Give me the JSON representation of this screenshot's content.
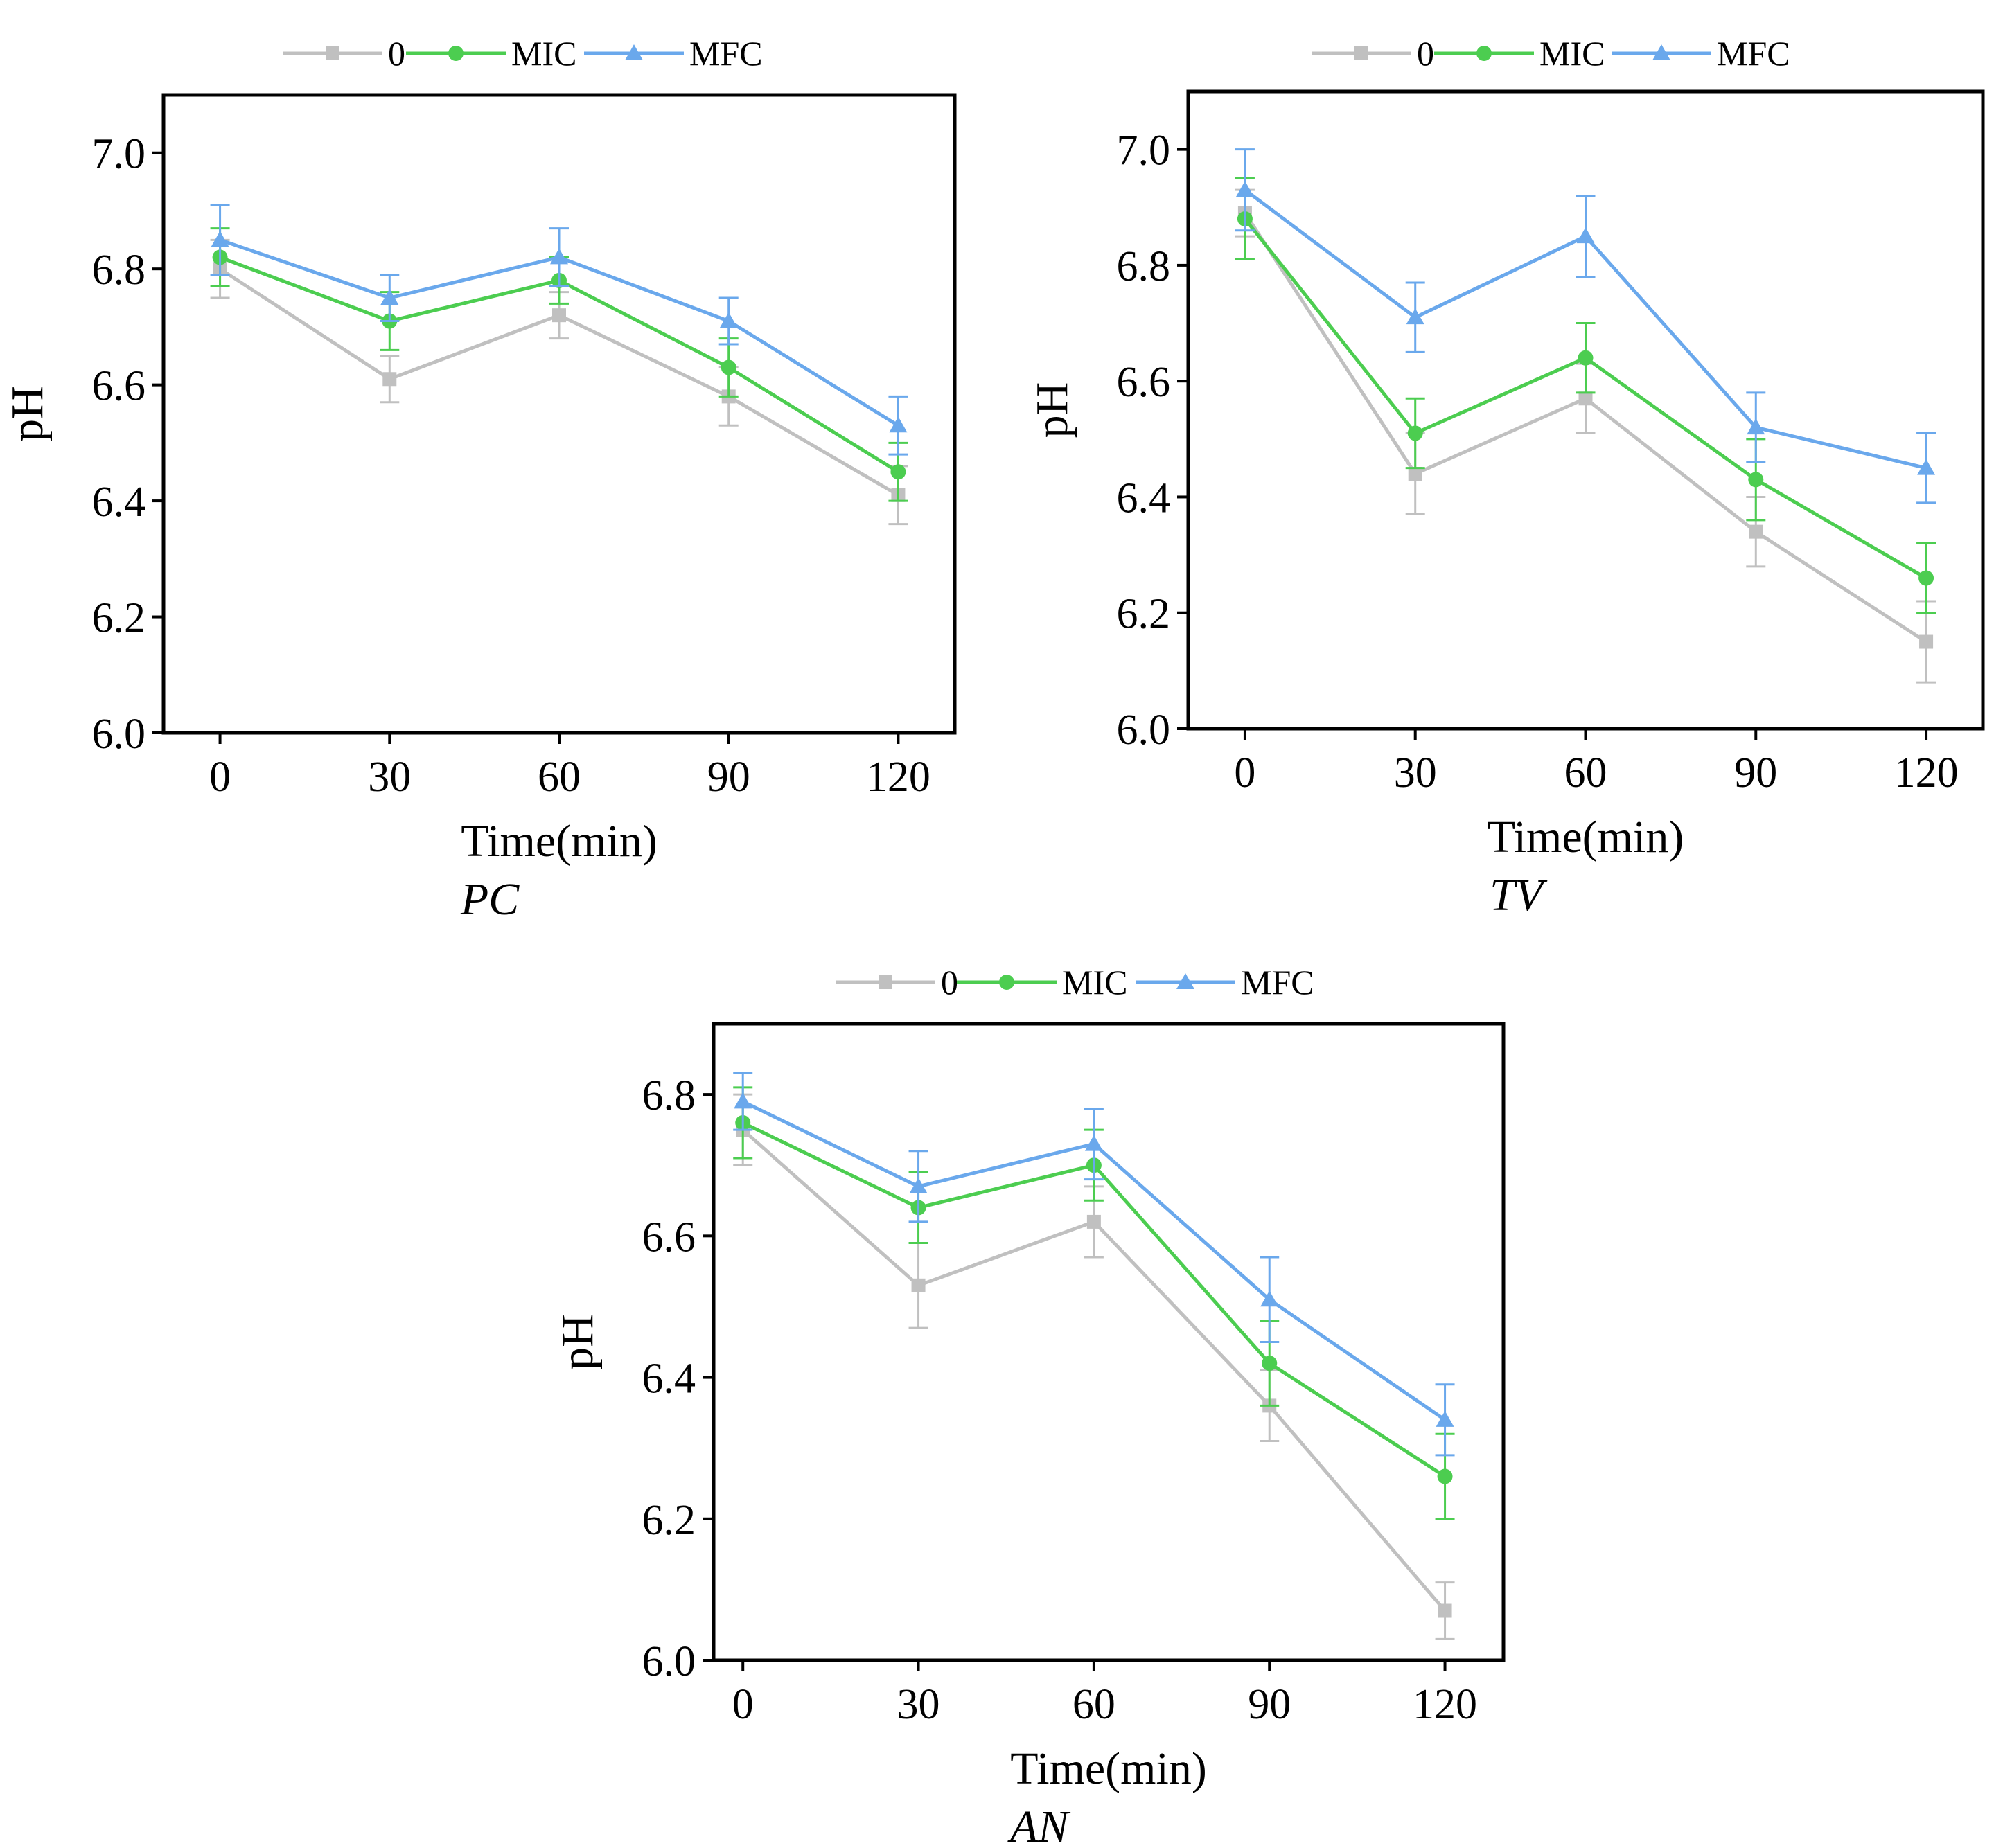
{
  "chart_data": [
    {
      "type": "line",
      "title": "",
      "panel_label": "PC",
      "xlabel": "Time(min)",
      "ylabel": "pH",
      "x": [
        0,
        30,
        60,
        90,
        120
      ],
      "x_ticks": [
        "0",
        "30",
        "60",
        "90",
        "120"
      ],
      "xlim": [
        -10,
        130
      ],
      "ylim": [
        6.0,
        7.1
      ],
      "y_ticks": [
        "6.0",
        "6.2",
        "6.4",
        "6.6",
        "6.8",
        "7.0"
      ],
      "y_tick_values": [
        6.0,
        6.2,
        6.4,
        6.6,
        6.8,
        7.0
      ],
      "grid": false,
      "legend_position": "top",
      "series": [
        {
          "name": "0",
          "marker": "square",
          "color": "#c0c0c0",
          "values": [
            6.8,
            6.61,
            6.72,
            6.58,
            6.41
          ],
          "errors": [
            0.05,
            0.04,
            0.04,
            0.05,
            0.05
          ]
        },
        {
          "name": "MIC",
          "marker": "circle",
          "color": "#4ccd50",
          "values": [
            6.82,
            6.71,
            6.78,
            6.63,
            6.45
          ],
          "errors": [
            0.05,
            0.05,
            0.04,
            0.05,
            0.05
          ]
        },
        {
          "name": "MFC",
          "marker": "triangle",
          "color": "#6aa8ec",
          "values": [
            6.85,
            6.75,
            6.82,
            6.71,
            6.53
          ],
          "errors": [
            0.06,
            0.04,
            0.05,
            0.04,
            0.05
          ]
        }
      ]
    },
    {
      "type": "line",
      "title": "",
      "panel_label": "TV",
      "xlabel": "Time(min)",
      "ylabel": "pH",
      "x": [
        0,
        30,
        60,
        90,
        120
      ],
      "x_ticks": [
        "0",
        "30",
        "60",
        "90",
        "120"
      ],
      "xlim": [
        -10,
        130
      ],
      "ylim": [
        6.0,
        7.1
      ],
      "y_ticks": [
        "6.0",
        "6.2",
        "6.4",
        "6.6",
        "6.8",
        "7.0"
      ],
      "y_tick_values": [
        6.0,
        6.2,
        6.4,
        6.6,
        6.8,
        7.0
      ],
      "grid": false,
      "legend_position": "top",
      "series": [
        {
          "name": "0",
          "marker": "square",
          "color": "#c0c0c0",
          "values": [
            6.89,
            6.44,
            6.57,
            6.34,
            6.15
          ],
          "errors": [
            0.04,
            0.07,
            0.06,
            0.06,
            0.07
          ]
        },
        {
          "name": "MIC",
          "marker": "circle",
          "color": "#4ccd50",
          "values": [
            6.88,
            6.51,
            6.64,
            6.43,
            6.26
          ],
          "errors": [
            0.07,
            0.06,
            0.06,
            0.07,
            0.06
          ]
        },
        {
          "name": "MFC",
          "marker": "triangle",
          "color": "#6aa8ec",
          "values": [
            6.93,
            6.71,
            6.85,
            6.52,
            6.45
          ],
          "errors": [
            0.07,
            0.06,
            0.07,
            0.06,
            0.06
          ]
        }
      ]
    },
    {
      "type": "line",
      "title": "",
      "panel_label": "AN",
      "xlabel": "Time(min)",
      "ylabel": "pH",
      "x": [
        0,
        30,
        60,
        90,
        120
      ],
      "x_ticks": [
        "0",
        "30",
        "60",
        "90",
        "120"
      ],
      "xlim": [
        -5,
        130
      ],
      "ylim": [
        6.0,
        6.9
      ],
      "y_ticks": [
        "6.0",
        "6.2",
        "6.4",
        "6.6",
        "6.8"
      ],
      "y_tick_values": [
        6.0,
        6.2,
        6.4,
        6.6,
        6.8
      ],
      "grid": false,
      "legend_position": "top",
      "series": [
        {
          "name": "0",
          "marker": "square",
          "color": "#c0c0c0",
          "values": [
            6.75,
            6.53,
            6.62,
            6.36,
            6.07
          ],
          "errors": [
            0.05,
            0.06,
            0.05,
            0.05,
            0.04
          ]
        },
        {
          "name": "MIC",
          "marker": "circle",
          "color": "#4ccd50",
          "values": [
            6.76,
            6.64,
            6.7,
            6.42,
            6.26
          ],
          "errors": [
            0.05,
            0.05,
            0.05,
            0.06,
            0.06
          ]
        },
        {
          "name": "MFC",
          "marker": "triangle",
          "color": "#6aa8ec",
          "values": [
            6.79,
            6.67,
            6.73,
            6.51,
            6.34
          ],
          "errors": [
            0.04,
            0.05,
            0.05,
            0.06,
            0.05
          ]
        }
      ]
    }
  ]
}
